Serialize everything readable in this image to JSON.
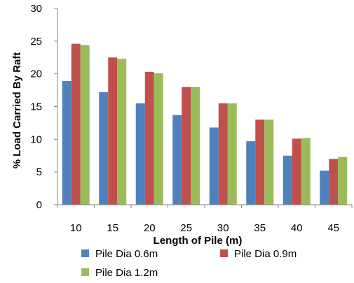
{
  "chart_data": {
    "type": "bar",
    "title": "",
    "xlabel": "Length of Pile  (m)",
    "ylabel": "% Load Carried By Raft",
    "ylim": [
      0,
      30
    ],
    "yticks": [
      0,
      5,
      10,
      15,
      20,
      25,
      30
    ],
    "grid": false,
    "legend_position": "bottom",
    "categories": [
      "10",
      "15",
      "20",
      "25",
      "30",
      "35",
      "40",
      "45"
    ],
    "series": [
      {
        "name": "Pile Dia 0.6m",
        "color": "#4f81bd",
        "values": [
          18.9,
          17.2,
          15.5,
          13.7,
          11.8,
          9.7,
          7.5,
          5.2
        ]
      },
      {
        "name": "Pile Dia 0.9m",
        "color": "#c0504d",
        "values": [
          24.6,
          22.5,
          20.3,
          18.0,
          15.5,
          13.0,
          10.1,
          7.0
        ]
      },
      {
        "name": "Pile Dia 1.2m",
        "color": "#9bbb59",
        "values": [
          24.4,
          22.3,
          20.1,
          18.0,
          15.5,
          13.0,
          10.2,
          7.3
        ]
      }
    ]
  }
}
